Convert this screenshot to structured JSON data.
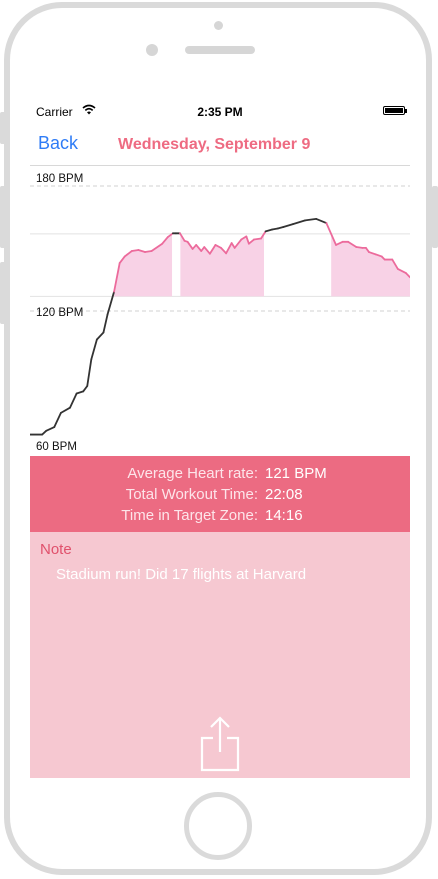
{
  "status_bar": {
    "carrier": "Carrier",
    "time": "2:35 PM"
  },
  "nav": {
    "back_label": "Back",
    "title": "Wednesday, September 9"
  },
  "chart_data": {
    "type": "line",
    "y_tick_labels": [
      "180 BPM",
      "120 BPM",
      "60 BPM"
    ],
    "ylim": [
      60,
      180
    ],
    "target_zone": [
      127,
      157
    ],
    "line_color": "#333333",
    "zone_color": "#ec6b9c",
    "x": [
      0,
      2.4,
      3.2,
      4.8,
      6.1,
      7.9,
      9.2,
      10.5,
      11.3,
      12.1,
      13.2,
      14.5,
      15.3,
      16.6,
      17.7,
      18.7,
      20.1,
      21.4,
      22.7,
      24,
      26.1,
      27.2,
      28.2,
      28.8,
      29.6,
      30.5,
      31.1,
      32.1,
      32.8,
      33.8,
      34.4,
      35.5,
      36.6,
      37.7,
      38.7,
      39.8,
      40.4,
      41.7,
      42.7,
      43.2,
      44.2,
      45.6,
      46.5,
      47.8,
      48.9,
      50,
      51.9,
      54.3,
      56.5,
      58.5,
      60.4,
      61.7,
      62.8,
      64.4,
      65.6,
      66.3,
      66.9,
      68.2,
      69.4,
      70,
      71.5,
      72.6,
      74.2,
      75
    ],
    "y": [
      60.7,
      60.7,
      62.5,
      64.3,
      71.1,
      73.6,
      80.4,
      81.4,
      84,
      96.8,
      106.3,
      109.7,
      118.3,
      129.3,
      143,
      146.2,
      148.8,
      149.3,
      148.3,
      148.8,
      152.3,
      155.5,
      157.3,
      157.3,
      157.3,
      153.7,
      153.2,
      149.8,
      151.7,
      148.8,
      150.7,
      147.5,
      151.7,
      150.3,
      147.7,
      152.6,
      150.3,
      154.3,
      155.8,
      152.3,
      154.3,
      154.8,
      158.2,
      159.1,
      159.6,
      160.3,
      161.7,
      163.5,
      164.2,
      162.2,
      151.7,
      153.2,
      153.2,
      150.7,
      150.3,
      150.3,
      148.3,
      147.2,
      146.2,
      144.7,
      144.7,
      140.2,
      138.2,
      136.2
    ]
  },
  "stats": {
    "average_label": "Average Heart rate:",
    "average_value": "121 BPM",
    "total_label": "Total Workout Time:",
    "total_value": "22:08",
    "target_label": "Time in Target Zone:",
    "target_value": "14:16"
  },
  "note": {
    "title": "Note",
    "text": "Stadium run! Did 17 flights at Harvard"
  },
  "icons": {
    "share": "share-icon",
    "wifi": "wifi-icon",
    "battery": "battery-icon"
  }
}
